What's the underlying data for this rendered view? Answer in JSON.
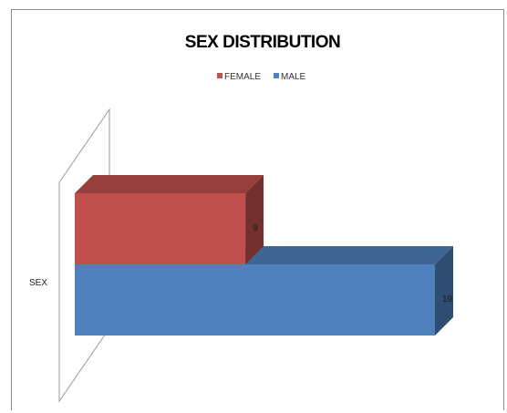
{
  "chart_data": {
    "type": "bar",
    "orientation": "horizontal",
    "style": "3d",
    "title": "SEX DISTRIBUTION",
    "categories": [
      "SEX"
    ],
    "series": [
      {
        "name": "FEMALE",
        "values": [
          9
        ],
        "color": "#c0504d"
      },
      {
        "name": "MALE",
        "values": [
          19
        ],
        "color": "#4f81bd"
      }
    ],
    "xlim": [
      0,
      19
    ],
    "legend_position": "top",
    "grid": false,
    "data_labels": true
  }
}
